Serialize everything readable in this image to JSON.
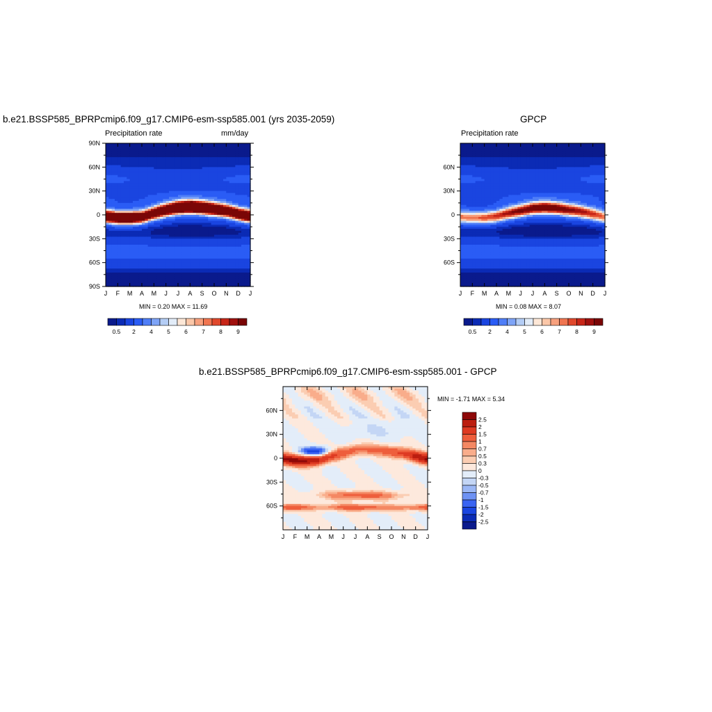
{
  "palettes": {
    "precip": [
      "#0a1a8c",
      "#0b2bb5",
      "#1a45e0",
      "#2a5cf5",
      "#4f7ef7",
      "#7ea4f7",
      "#b4cdf5",
      "#e2ecf8",
      "#fde7d7",
      "#fbc7a8",
      "#f7a07d",
      "#f07550",
      "#e0482c",
      "#c82618",
      "#a0100e",
      "#7a0606"
    ],
    "diff": [
      "#0a1a8c",
      "#0b2bb5",
      "#1a45e0",
      "#3a64f2",
      "#6e92f4",
      "#9bb7f5",
      "#c4d6f5",
      "#e3edf9",
      "#fde9dd",
      "#fbcdb2",
      "#f9ad8b",
      "#f48863",
      "#ee5e3c",
      "#de3a22",
      "#bc1e10",
      "#8e0808"
    ]
  },
  "top_left": {
    "title": "b.e21.BSSP585_BPRPcmip6.f09_g17.CMIP6-esm-ssp585.001 (yrs 2035-2059)",
    "left_label": "Precipitation rate",
    "right_label": "mm/day",
    "stats": "MIN =   0.20 MAX =  11.69"
  },
  "top_right": {
    "title": "GPCP",
    "left_label": "Precipitation rate",
    "stats": "MIN =   0.08 MAX =   8.07"
  },
  "bottom": {
    "title": "b.e21.BSSP585_BPRPcmip6.f09_g17.CMIP6-esm-ssp585.001 - GPCP",
    "stats": "MIN =  -1.71 MAX =   5.34"
  },
  "chart_data": [
    {
      "type": "heatmap",
      "title": "b.e21.BSSP585_BPRPcmip6.f09_g17.CMIP6-esm-ssp585.001 (yrs 2035-2059)",
      "xlabel": "",
      "ylabel": "",
      "x_ticks": [
        "J",
        "F",
        "M",
        "A",
        "M",
        "J",
        "J",
        "A",
        "S",
        "O",
        "N",
        "D",
        "J"
      ],
      "y_ticks": [
        "90N",
        "60N",
        "30N",
        "0",
        "30S",
        "60S",
        "90S"
      ],
      "ylim": [
        -90,
        90
      ],
      "units": "mm/day",
      "colorbar_labels": [
        "0.5",
        "2",
        "4",
        "5",
        "6",
        "7",
        "8",
        "9"
      ],
      "itcz_lat_by_month": [
        -2,
        -4,
        -4,
        -3,
        2,
        6,
        9,
        10,
        9,
        7,
        5,
        1,
        -2
      ],
      "itcz_peak_by_month": [
        10,
        10,
        10.5,
        9,
        9,
        9.5,
        10.5,
        11.5,
        11,
        10,
        9,
        9.5,
        10
      ],
      "min": 0.2,
      "max": 11.69
    },
    {
      "type": "heatmap",
      "title": "GPCP",
      "xlabel": "",
      "ylabel": "",
      "x_ticks": [
        "J",
        "F",
        "M",
        "A",
        "M",
        "J",
        "J",
        "A",
        "S",
        "O",
        "N",
        "D",
        "J"
      ],
      "y_ticks": [
        "60N",
        "30N",
        "0",
        "30S",
        "60S"
      ],
      "ylim": [
        -90,
        90
      ],
      "colorbar_labels": [
        "0.5",
        "2",
        "4",
        "5",
        "6",
        "7",
        "8",
        "9"
      ],
      "itcz_lat_by_month": [
        -3,
        -4,
        -4,
        -2,
        2,
        5,
        8,
        9,
        8,
        6,
        4,
        1,
        -3
      ],
      "itcz_peak_by_month": [
        5,
        5,
        5.5,
        6,
        6.5,
        7,
        7.5,
        8,
        7.5,
        7,
        6.5,
        6,
        5
      ],
      "min": 0.08,
      "max": 8.07
    },
    {
      "type": "heatmap",
      "title": "b.e21.BSSP585_BPRPcmip6.f09_g17.CMIP6-esm-ssp585.001 - GPCP",
      "xlabel": "",
      "ylabel": "",
      "x_ticks": [
        "J",
        "F",
        "M",
        "A",
        "M",
        "J",
        "J",
        "A",
        "S",
        "O",
        "N",
        "D",
        "J"
      ],
      "y_ticks": [
        "60N",
        "30N",
        "0",
        "30S",
        "60S"
      ],
      "ylim": [
        -90,
        90
      ],
      "colorbar_labels": [
        "2.5",
        "2",
        "1.5",
        "1",
        "0.7",
        "0.5",
        "0.3",
        "0",
        "-0.3",
        "-0.5",
        "-0.7",
        "-1",
        "-1.5",
        "-2",
        "-2.5"
      ],
      "min": -1.71,
      "max": 5.34
    }
  ]
}
